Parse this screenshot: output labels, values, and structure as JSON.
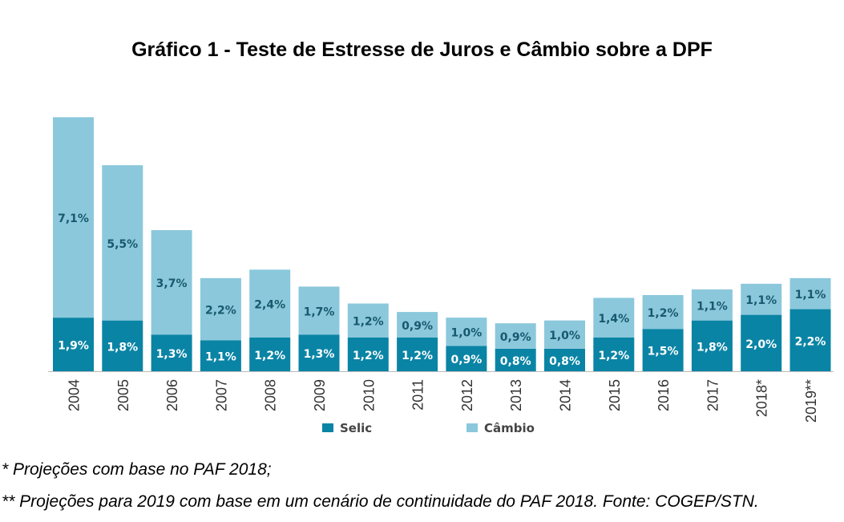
{
  "chart_data": {
    "type": "bar",
    "stacked": true,
    "title": "Gráfico 1 - Teste de Estresse de Juros e Câmbio sobre a DPF",
    "categories": [
      "2004",
      "2005",
      "2006",
      "2007",
      "2008",
      "2009",
      "2010",
      "2011",
      "2012",
      "2013",
      "2014",
      "2015",
      "2016",
      "2017",
      "2018*",
      "2019**"
    ],
    "series": [
      {
        "name": "Selic",
        "color": "#0a84a5",
        "label_color": "#ffffff",
        "values": [
          1.9,
          1.8,
          1.3,
          1.1,
          1.2,
          1.3,
          1.2,
          1.2,
          0.9,
          0.8,
          0.8,
          1.2,
          1.5,
          1.8,
          2.0,
          2.2
        ]
      },
      {
        "name": "Câmbio",
        "color": "#8bc8dc",
        "label_color": "#17596e",
        "values": [
          7.1,
          5.5,
          3.7,
          2.2,
          2.4,
          1.7,
          1.2,
          0.9,
          1.0,
          0.9,
          1.0,
          1.4,
          1.2,
          1.1,
          1.1,
          1.1
        ]
      }
    ],
    "value_format": "percent, comma decimal",
    "legend_position": "bottom",
    "grid": false,
    "y_axis_visible": false
  },
  "notes": [
    "* Projeções com base no PAF 2018;",
    "** Projeções para 2019 com base em um cenário de continuidade do PAF 2018. Fonte: COGEP/STN."
  ]
}
